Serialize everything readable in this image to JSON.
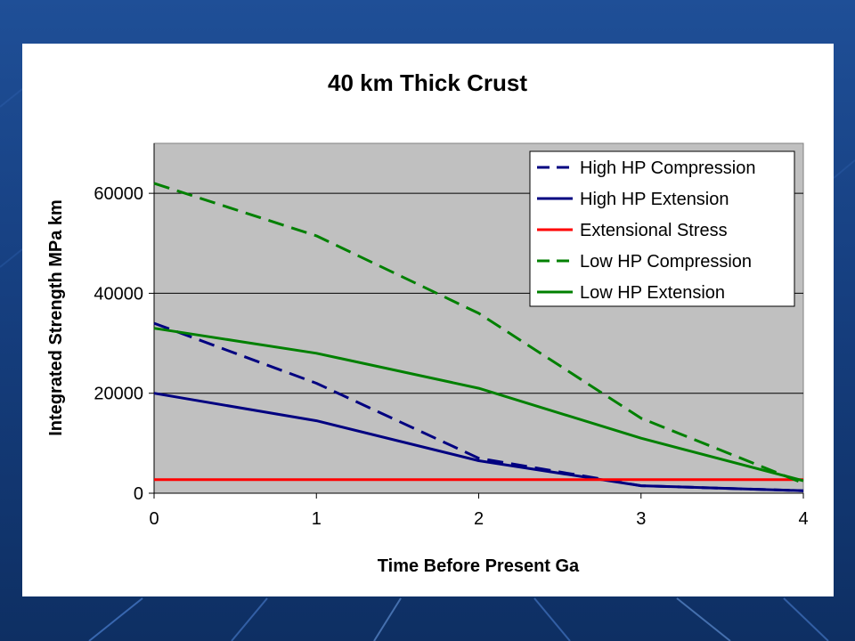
{
  "chart_data": {
    "type": "line",
    "title": "40 km Thick Crust",
    "xlabel": "Time Before Present Ga",
    "ylabel": "Integrated Strength MPa km",
    "xlim": [
      0,
      4
    ],
    "ylim": [
      0,
      70000
    ],
    "xticks": [
      "0",
      "1",
      "2",
      "3",
      "4"
    ],
    "yticks": [
      "0",
      "20000",
      "40000",
      "60000"
    ],
    "ytick_values": [
      0,
      20000,
      40000,
      60000
    ],
    "grid": "horizontal",
    "plot_background": "#c0c0c0",
    "legend_position": "top-right",
    "series": [
      {
        "name": "High HP Compression",
        "color": "#000080",
        "dash": true,
        "x": [
          0,
          1,
          2,
          3,
          4
        ],
        "y": [
          34000,
          22000,
          7000,
          1500,
          500
        ]
      },
      {
        "name": "High HP Extension",
        "color": "#000080",
        "dash": false,
        "x": [
          0,
          1,
          2,
          3,
          4
        ],
        "y": [
          20000,
          14500,
          6500,
          1500,
          500
        ]
      },
      {
        "name": "Extensional Stress",
        "color": "#ff0000",
        "dash": false,
        "x": [
          0,
          1,
          2,
          3,
          4
        ],
        "y": [
          2700,
          2700,
          2700,
          2700,
          2700
        ]
      },
      {
        "name": "Low HP Compression",
        "color": "#008000",
        "dash": true,
        "x": [
          0,
          1,
          2,
          3,
          4
        ],
        "y": [
          62000,
          51500,
          36000,
          15000,
          2000
        ]
      },
      {
        "name": "Low HP Extension",
        "color": "#008000",
        "dash": false,
        "x": [
          0,
          1,
          2,
          3,
          4
        ],
        "y": [
          33000,
          28000,
          21000,
          11000,
          2500
        ]
      }
    ]
  }
}
